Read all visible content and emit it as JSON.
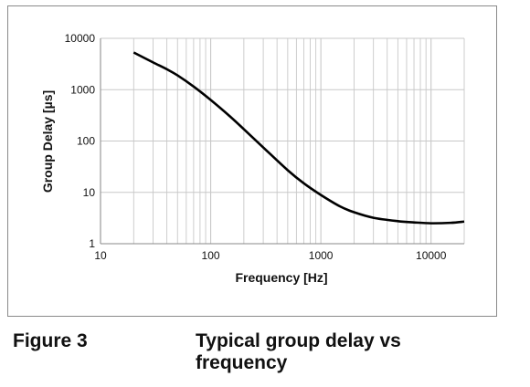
{
  "chart_data": {
    "type": "line",
    "xscale": "log",
    "yscale": "log",
    "xlim": [
      10,
      20000
    ],
    "ylim": [
      1,
      10000
    ],
    "xlabel": "Frequency [Hz]",
    "ylabel": "Group Delay [µs]",
    "x_ticks": [
      "10",
      "100",
      "1000",
      "10000"
    ],
    "y_ticks": [
      "1",
      "10",
      "100",
      "1000",
      "10000"
    ],
    "grid": true,
    "legend": "none",
    "line_color": "#000000",
    "grid_color": "#c8c8c8",
    "series": [
      {
        "x": [
          20,
          30,
          40,
          50,
          70,
          100,
          150,
          200,
          300,
          500,
          700,
          1000,
          1500,
          2000,
          3000,
          5000,
          7000,
          10000,
          15000,
          20000
        ],
        "y": [
          5300,
          3400,
          2500,
          1900,
          1150,
          630,
          300,
          170,
          75,
          27,
          15,
          8.9,
          5.3,
          4.1,
          3.2,
          2.75,
          2.6,
          2.5,
          2.55,
          2.7
        ]
      }
    ]
  },
  "figure": {
    "label": "Figure 3",
    "caption": "Typical group delay vs frequency"
  }
}
